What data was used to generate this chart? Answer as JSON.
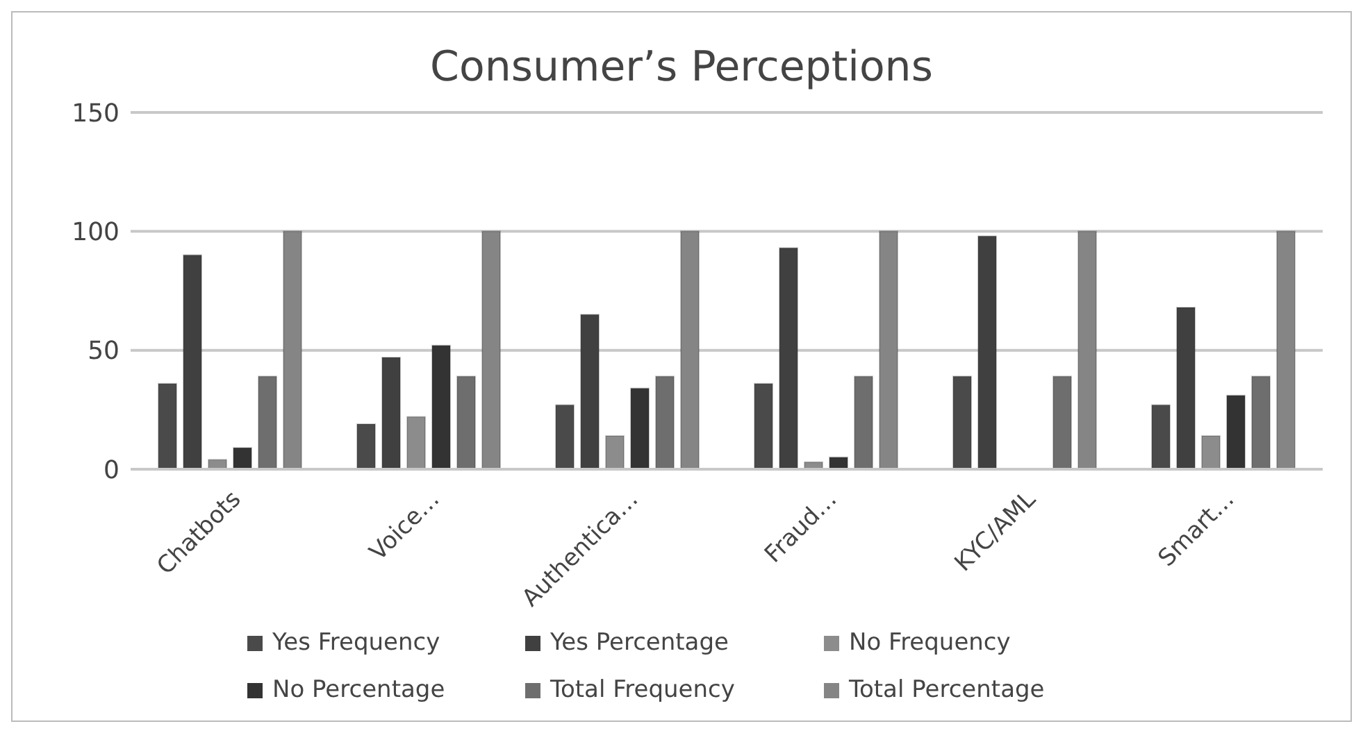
{
  "chart_data": {
    "type": "bar",
    "title": "Consumer’s Perceptions",
    "categories": [
      "Chatbots",
      "Voice…",
      "Authentica…",
      "Fraud…",
      "KYC/AML",
      "Smart…"
    ],
    "series": [
      {
        "name": "Yes Frequency",
        "color": "#4a4a4a",
        "values": [
          36,
          19,
          27,
          36,
          39,
          27
        ]
      },
      {
        "name": "Yes Percentage",
        "color": "#404040",
        "values": [
          90,
          47,
          65,
          93,
          98,
          68
        ]
      },
      {
        "name": "No Frequency",
        "color": "#8c8c8c",
        "values": [
          4,
          22,
          14,
          3,
          0,
          14
        ]
      },
      {
        "name": "No Percentage",
        "color": "#333333",
        "values": [
          9,
          52,
          34,
          5,
          0,
          31
        ]
      },
      {
        "name": "Total Frequency",
        "color": "#6e6e6e",
        "values": [
          39,
          39,
          39,
          39,
          39,
          39
        ]
      },
      {
        "name": "Total Percentage",
        "color": "#858585",
        "values": [
          100,
          100,
          100,
          100,
          100,
          100
        ]
      }
    ],
    "ylim": [
      0,
      150
    ],
    "yticks": [
      0,
      50,
      100,
      150
    ],
    "grid": "y",
    "legend": "bottom"
  }
}
